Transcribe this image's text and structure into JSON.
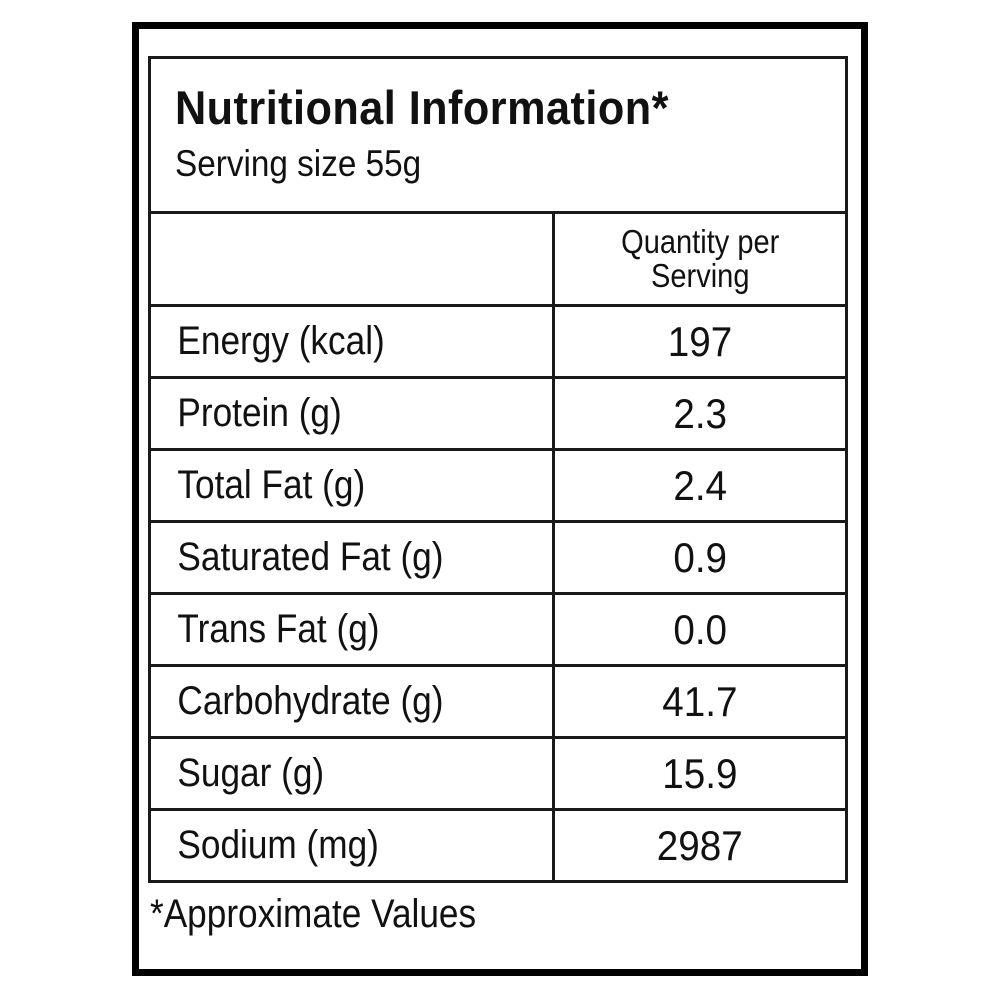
{
  "label": {
    "title": "Nutritional Information*",
    "serving_size": "Serving size 55g",
    "column_header": "Quantity per Serving",
    "rows": [
      {
        "nutrient": "Energy (kcal)",
        "value": "197"
      },
      {
        "nutrient": "Protein (g)",
        "value": "2.3"
      },
      {
        "nutrient": "Total Fat (g)",
        "value": "2.4"
      },
      {
        "nutrient": "Saturated Fat (g)",
        "value": "0.9"
      },
      {
        "nutrient": "Trans Fat (g)",
        "value": "0.0"
      },
      {
        "nutrient": "Carbohydrate (g)",
        "value": "41.7"
      },
      {
        "nutrient": "Sugar (g)",
        "value": "15.9"
      },
      {
        "nutrient": "Sodium (mg)",
        "value": "2987"
      }
    ],
    "footnote": "*Approximate Values"
  },
  "colors": {
    "border": "#000000",
    "text": "#111111",
    "background": "#ffffff"
  }
}
